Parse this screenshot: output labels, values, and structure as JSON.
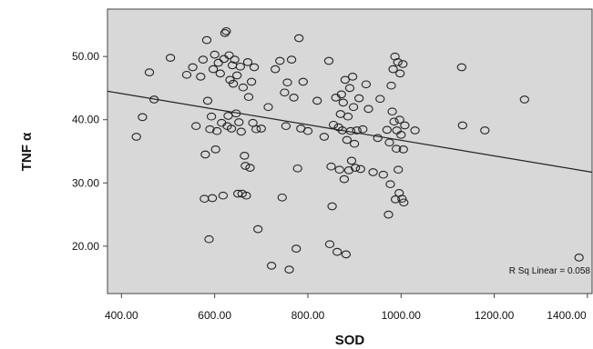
{
  "chart_data": {
    "type": "scatter",
    "title": "",
    "xlabel": "SOD",
    "ylabel": "TNF α",
    "xlim": [
      370,
      1410
    ],
    "ylim": [
      12.5,
      57.5
    ],
    "xticks": [
      400,
      600,
      800,
      1000,
      1200,
      1400
    ],
    "xtick_labels": [
      "400.00",
      "600.00",
      "800.00",
      "1000.00",
      "1200.00",
      "1400.00"
    ],
    "yticks": [
      20,
      30,
      40,
      50
    ],
    "ytick_labels": [
      "20.00",
      "30.00",
      "40.00",
      "50.00"
    ],
    "grid": false,
    "legend": "none",
    "annotation": "R Sq Linear = 0.058",
    "colors": {
      "plot_bg": "#d8d8d8",
      "marker": "#222222",
      "fit_line": "#222222"
    },
    "fit_line": {
      "x": [
        370,
        1410
      ],
      "y": [
        44.5,
        31.7
      ]
    },
    "points": [
      {
        "x": 432,
        "y": 37.3
      },
      {
        "x": 445,
        "y": 40.4
      },
      {
        "x": 460,
        "y": 47.5
      },
      {
        "x": 470,
        "y": 43.2
      },
      {
        "x": 505,
        "y": 49.8
      },
      {
        "x": 540,
        "y": 47.1
      },
      {
        "x": 553,
        "y": 48.3
      },
      {
        "x": 560,
        "y": 39.0
      },
      {
        "x": 570,
        "y": 46.8
      },
      {
        "x": 575,
        "y": 49.5
      },
      {
        "x": 578,
        "y": 27.5
      },
      {
        "x": 580,
        "y": 34.5
      },
      {
        "x": 583,
        "y": 52.6
      },
      {
        "x": 585,
        "y": 43.0
      },
      {
        "x": 588,
        "y": 21.1
      },
      {
        "x": 590,
        "y": 38.5
      },
      {
        "x": 593,
        "y": 40.5
      },
      {
        "x": 595,
        "y": 27.6
      },
      {
        "x": 597,
        "y": 48.0
      },
      {
        "x": 600,
        "y": 50.3
      },
      {
        "x": 602,
        "y": 35.3
      },
      {
        "x": 605,
        "y": 38.2
      },
      {
        "x": 608,
        "y": 49.0
      },
      {
        "x": 612,
        "y": 47.3
      },
      {
        "x": 615,
        "y": 39.5
      },
      {
        "x": 618,
        "y": 28.0
      },
      {
        "x": 620,
        "y": 49.6
      },
      {
        "x": 622,
        "y": 53.7
      },
      {
        "x": 625,
        "y": 54.0
      },
      {
        "x": 627,
        "y": 39.0
      },
      {
        "x": 629,
        "y": 40.6
      },
      {
        "x": 631,
        "y": 50.2
      },
      {
        "x": 633,
        "y": 46.3
      },
      {
        "x": 636,
        "y": 38.6
      },
      {
        "x": 638,
        "y": 48.6
      },
      {
        "x": 640,
        "y": 45.7
      },
      {
        "x": 643,
        "y": 49.5
      },
      {
        "x": 646,
        "y": 41.0
      },
      {
        "x": 648,
        "y": 47.0
      },
      {
        "x": 650,
        "y": 28.3
      },
      {
        "x": 652,
        "y": 39.6
      },
      {
        "x": 655,
        "y": 48.4
      },
      {
        "x": 657,
        "y": 38.1
      },
      {
        "x": 659,
        "y": 28.3
      },
      {
        "x": 661,
        "y": 45.1
      },
      {
        "x": 664,
        "y": 34.3
      },
      {
        "x": 666,
        "y": 32.7
      },
      {
        "x": 668,
        "y": 28.0
      },
      {
        "x": 671,
        "y": 49.1
      },
      {
        "x": 673,
        "y": 43.6
      },
      {
        "x": 676,
        "y": 32.4
      },
      {
        "x": 679,
        "y": 46.0
      },
      {
        "x": 682,
        "y": 39.5
      },
      {
        "x": 685,
        "y": 48.3
      },
      {
        "x": 689,
        "y": 38.5
      },
      {
        "x": 693,
        "y": 22.7
      },
      {
        "x": 700,
        "y": 38.6
      },
      {
        "x": 715,
        "y": 42.0
      },
      {
        "x": 722,
        "y": 16.9
      },
      {
        "x": 730,
        "y": 48.0
      },
      {
        "x": 740,
        "y": 49.3
      },
      {
        "x": 745,
        "y": 27.7
      },
      {
        "x": 750,
        "y": 44.3
      },
      {
        "x": 753,
        "y": 39.0
      },
      {
        "x": 756,
        "y": 45.9
      },
      {
        "x": 760,
        "y": 16.3
      },
      {
        "x": 765,
        "y": 49.5
      },
      {
        "x": 770,
        "y": 43.5
      },
      {
        "x": 775,
        "y": 19.6
      },
      {
        "x": 778,
        "y": 32.3
      },
      {
        "x": 781,
        "y": 52.9
      },
      {
        "x": 785,
        "y": 38.6
      },
      {
        "x": 790,
        "y": 46.0
      },
      {
        "x": 800,
        "y": 38.2
      },
      {
        "x": 820,
        "y": 43.0
      },
      {
        "x": 835,
        "y": 37.3
      },
      {
        "x": 845,
        "y": 49.3
      },
      {
        "x": 847,
        "y": 20.3
      },
      {
        "x": 850,
        "y": 32.6
      },
      {
        "x": 852,
        "y": 26.3
      },
      {
        "x": 855,
        "y": 39.2
      },
      {
        "x": 860,
        "y": 43.5
      },
      {
        "x": 863,
        "y": 19.1
      },
      {
        "x": 866,
        "y": 38.8
      },
      {
        "x": 868,
        "y": 32.1
      },
      {
        "x": 870,
        "y": 40.9
      },
      {
        "x": 872,
        "y": 44.0
      },
      {
        "x": 874,
        "y": 38.3
      },
      {
        "x": 876,
        "y": 42.7
      },
      {
        "x": 878,
        "y": 30.6
      },
      {
        "x": 880,
        "y": 46.3
      },
      {
        "x": 882,
        "y": 18.7
      },
      {
        "x": 884,
        "y": 36.8
      },
      {
        "x": 886,
        "y": 40.5
      },
      {
        "x": 888,
        "y": 32.0
      },
      {
        "x": 890,
        "y": 45.0
      },
      {
        "x": 892,
        "y": 38.2
      },
      {
        "x": 894,
        "y": 33.5
      },
      {
        "x": 896,
        "y": 46.8
      },
      {
        "x": 898,
        "y": 42.0
      },
      {
        "x": 900,
        "y": 36.2
      },
      {
        "x": 902,
        "y": 32.4
      },
      {
        "x": 905,
        "y": 38.3
      },
      {
        "x": 910,
        "y": 43.4
      },
      {
        "x": 913,
        "y": 32.2
      },
      {
        "x": 918,
        "y": 38.5
      },
      {
        "x": 925,
        "y": 45.6
      },
      {
        "x": 930,
        "y": 41.7
      },
      {
        "x": 940,
        "y": 31.7
      },
      {
        "x": 950,
        "y": 37.1
      },
      {
        "x": 955,
        "y": 43.3
      },
      {
        "x": 962,
        "y": 31.3
      },
      {
        "x": 970,
        "y": 38.4
      },
      {
        "x": 973,
        "y": 25.0
      },
      {
        "x": 975,
        "y": 36.4
      },
      {
        "x": 977,
        "y": 29.8
      },
      {
        "x": 979,
        "y": 45.4
      },
      {
        "x": 981,
        "y": 41.3
      },
      {
        "x": 983,
        "y": 48.0
      },
      {
        "x": 985,
        "y": 39.7
      },
      {
        "x": 987,
        "y": 50.0
      },
      {
        "x": 988,
        "y": 27.4
      },
      {
        "x": 990,
        "y": 35.4
      },
      {
        "x": 991,
        "y": 38.3
      },
      {
        "x": 993,
        "y": 49.1
      },
      {
        "x": 994,
        "y": 32.1
      },
      {
        "x": 996,
        "y": 28.4
      },
      {
        "x": 997,
        "y": 40.0
      },
      {
        "x": 998,
        "y": 47.3
      },
      {
        "x": 1000,
        "y": 37.6
      },
      {
        "x": 1002,
        "y": 27.5
      },
      {
        "x": 1004,
        "y": 48.8
      },
      {
        "x": 1005,
        "y": 35.3
      },
      {
        "x": 1006,
        "y": 26.9
      },
      {
        "x": 1008,
        "y": 39.1
      },
      {
        "x": 1030,
        "y": 38.3
      },
      {
        "x": 1130,
        "y": 48.3
      },
      {
        "x": 1132,
        "y": 39.1
      },
      {
        "x": 1180,
        "y": 38.3
      },
      {
        "x": 1265,
        "y": 43.2
      },
      {
        "x": 1382,
        "y": 18.2
      }
    ]
  }
}
